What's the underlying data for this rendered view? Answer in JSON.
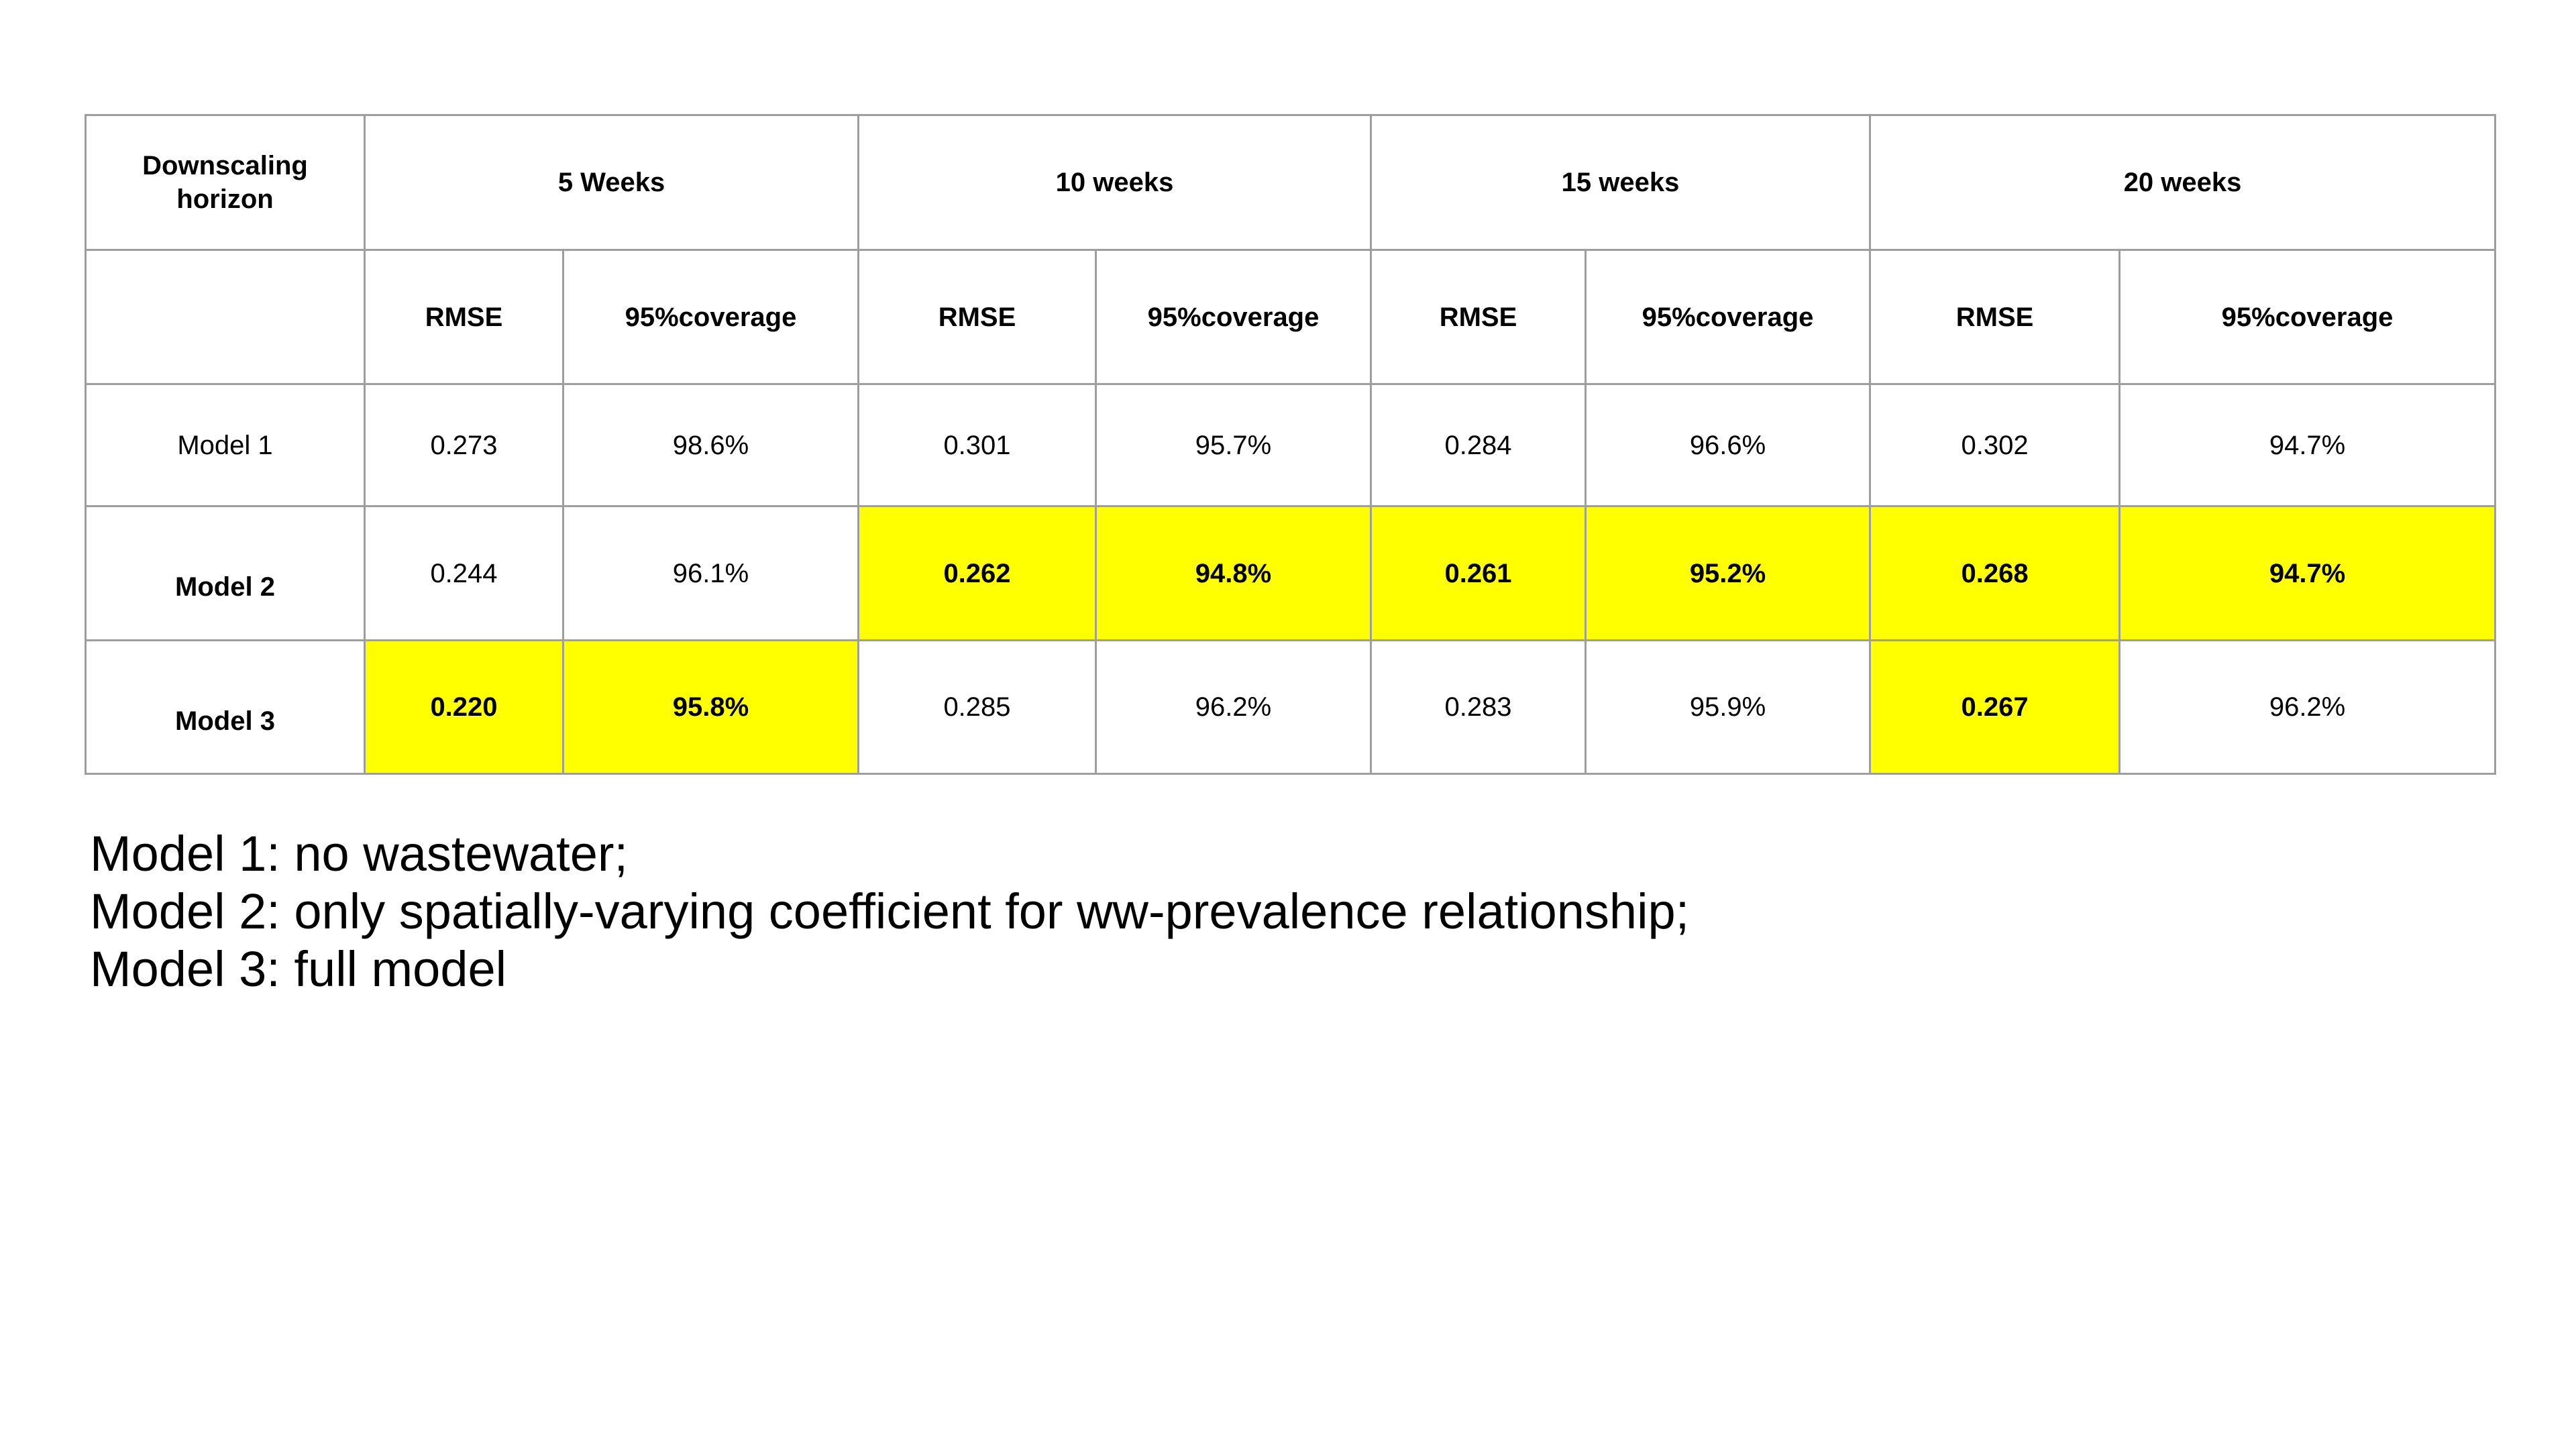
{
  "table": {
    "header": {
      "corner_label": "Downscaling horizon",
      "horizons": [
        "5 Weeks",
        "10 weeks",
        "15 weeks",
        "20 weeks"
      ]
    },
    "subheader": {
      "metric_labels": [
        "RMSE",
        "95%coverage",
        "RMSE",
        "95%coverage",
        "RMSE",
        "95%coverage",
        "RMSE",
        "95%coverage"
      ]
    },
    "rows": [
      {
        "label": "Model 1",
        "values": [
          "0.273",
          "98.6%",
          "0.301",
          "95.7%",
          "0.284",
          "96.6%",
          "0.302",
          "94.7%"
        ],
        "highlighted": [
          false,
          false,
          false,
          false,
          false,
          false,
          false,
          false
        ]
      },
      {
        "label": "Model 2",
        "values": [
          "0.244",
          "96.1%",
          "0.262",
          "94.8%",
          "0.261",
          "95.2%",
          "0.268",
          "94.7%"
        ],
        "highlighted": [
          false,
          false,
          true,
          true,
          true,
          true,
          true,
          true
        ]
      },
      {
        "label": "Model 3",
        "values": [
          "0.220",
          "95.8%",
          "0.285",
          "96.2%",
          "0.283",
          "95.9%",
          "0.267",
          "96.2%"
        ],
        "highlighted": [
          true,
          true,
          false,
          false,
          false,
          false,
          true,
          false
        ]
      }
    ],
    "highlight_color": "#ffff00",
    "border_color": "#9e9e9e"
  },
  "legend": {
    "lines": [
      "Model 1: no wastewater;",
      "Model 2: only spatially-varying coefficient for ww-prevalence relationship;",
      "Model 3: full model"
    ]
  }
}
